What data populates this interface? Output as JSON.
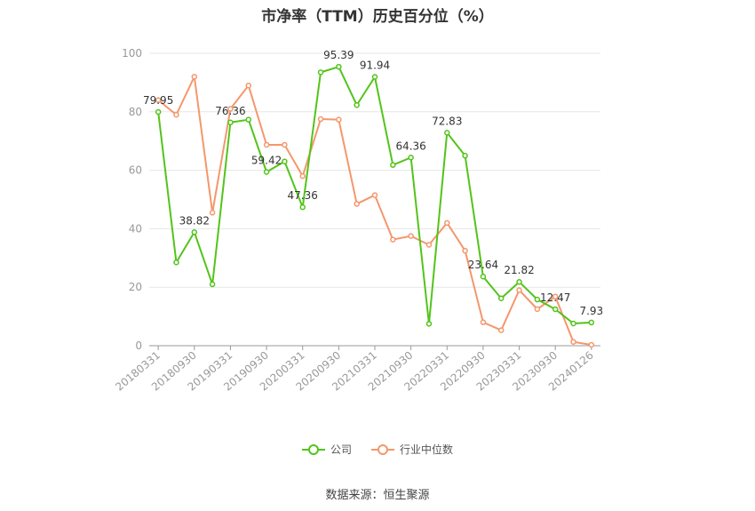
{
  "chart_data": {
    "type": "line",
    "title": "市净率（TTM）历史百分位（%）",
    "ylim": [
      0,
      100
    ],
    "yticks": [
      0,
      20,
      40,
      60,
      80,
      100
    ],
    "grid": true,
    "legend_placement": "bottom",
    "x_tick_labels": [
      "20180331",
      "20180930",
      "20190331",
      "20190930",
      "20200331",
      "20200930",
      "20210331",
      "20210930",
      "20220331",
      "20220930",
      "20230331",
      "20230930",
      "20240126"
    ],
    "x_tick_indices": [
      0,
      2,
      4,
      6,
      8,
      10,
      12,
      14,
      16,
      18,
      20,
      22,
      24
    ],
    "series": [
      {
        "name": "公司",
        "color": "#52c41a",
        "values": [
          79.95,
          28.5,
          38.82,
          21.0,
          76.36,
          77.3,
          59.42,
          63.0,
          47.36,
          93.5,
          95.39,
          82.3,
          91.94,
          61.8,
          64.36,
          7.5,
          72.83,
          65.0,
          23.64,
          16.2,
          21.82,
          15.8,
          12.47,
          7.6,
          7.93
        ],
        "labels": {
          "0": "79.95",
          "2": "38.82",
          "4": "76.36",
          "6": "59.42",
          "8": "47.36",
          "10": "95.39",
          "12": "91.94",
          "14": "64.36",
          "16": "72.83",
          "18": "23.64",
          "20": "21.82",
          "22": "12.47",
          "24": "7.93"
        }
      },
      {
        "name": "行业中位数",
        "color": "#f4976c",
        "values": [
          84.0,
          79.0,
          92.0,
          45.5,
          81.0,
          89.0,
          68.7,
          68.7,
          58.0,
          77.5,
          77.3,
          48.5,
          51.5,
          36.3,
          37.5,
          34.5,
          42.0,
          32.5,
          8.0,
          5.3,
          19.0,
          12.5,
          16.8,
          1.3,
          0.3
        ]
      }
    ]
  },
  "legend": {
    "company": "公司",
    "industry": "行业中位数"
  },
  "source": "数据来源：恒生聚源"
}
